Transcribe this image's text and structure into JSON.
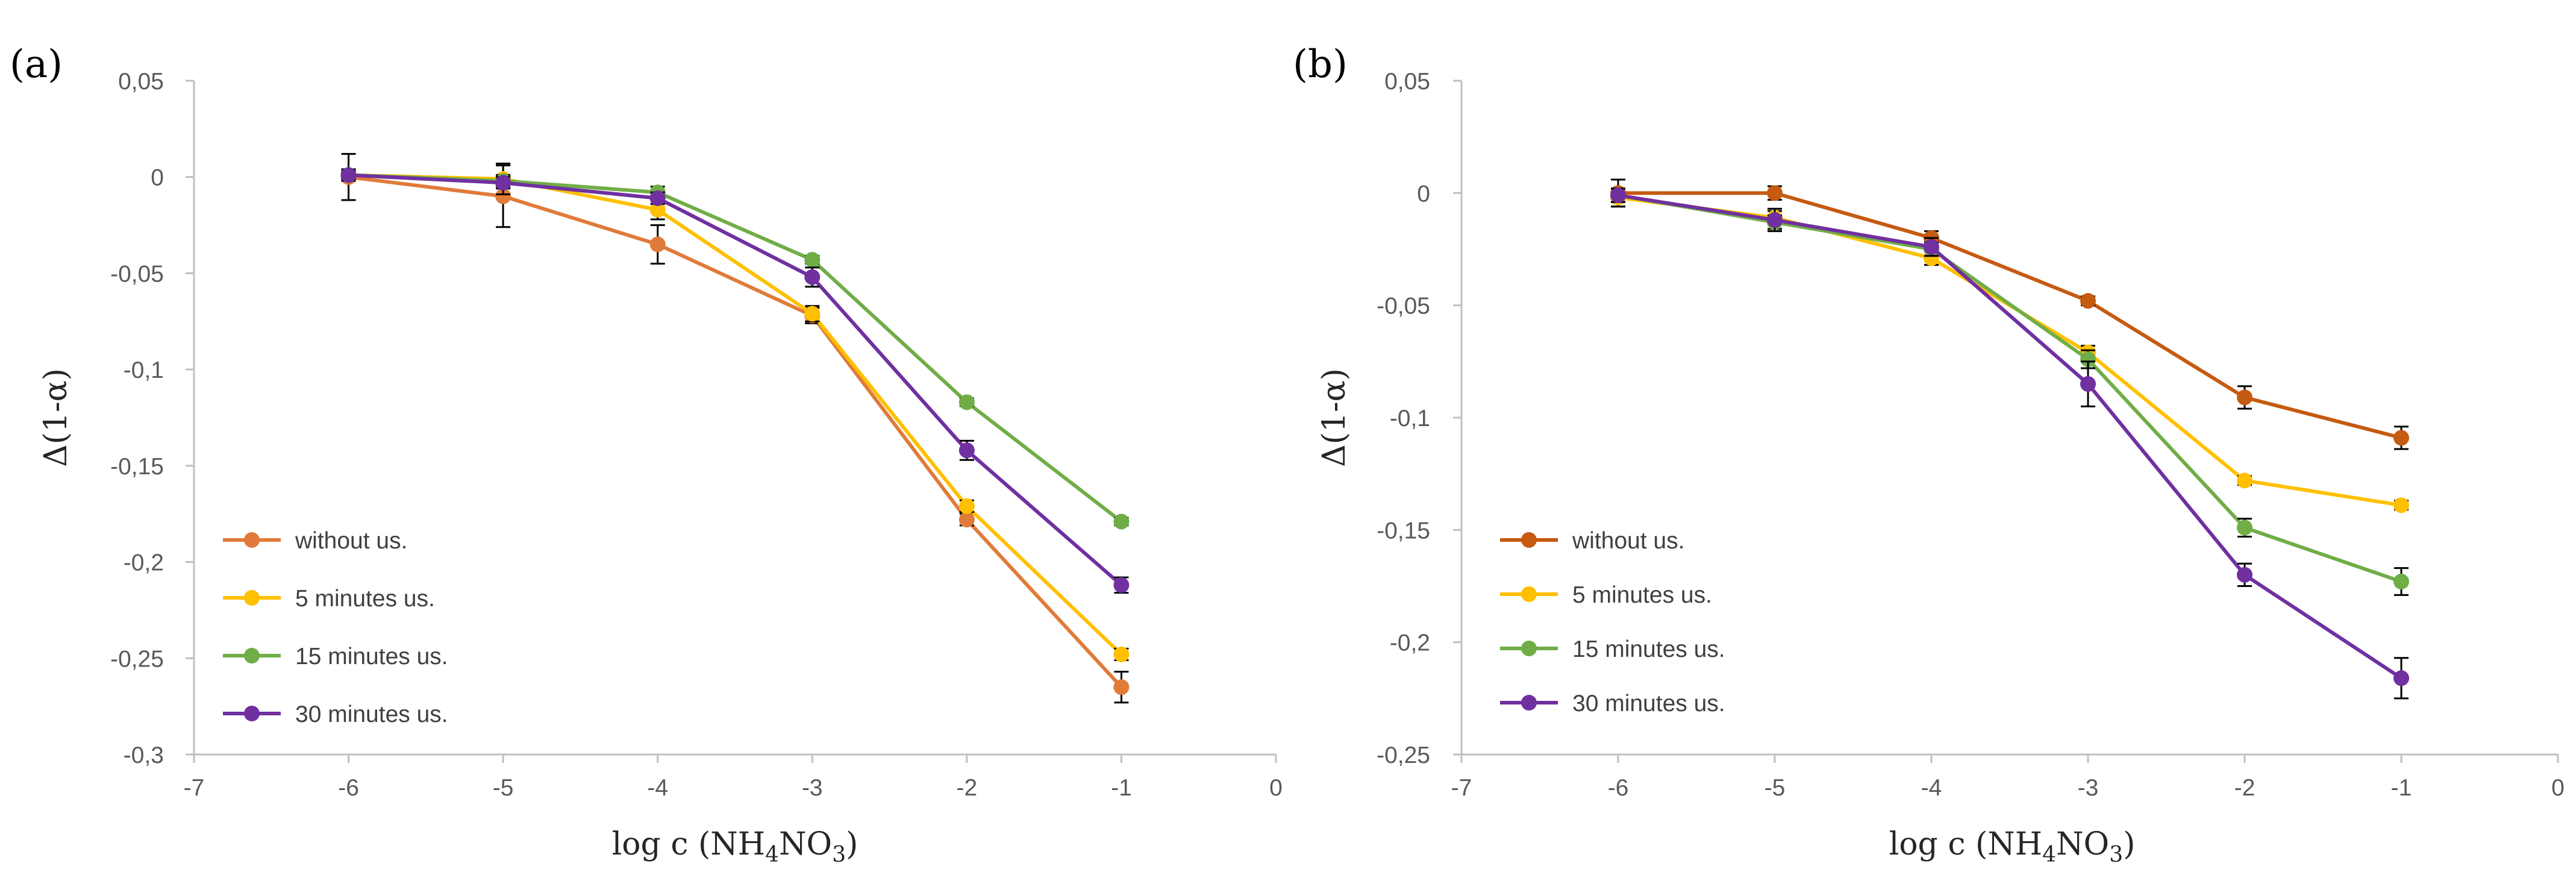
{
  "chart_data": [
    {
      "type": "line",
      "panel_label": "(a)",
      "xlabel": "log c (NH",
      "xlabel_sub": "4",
      "xlabel_mid": "NO",
      "xlabel_sub2": "3",
      "xlabel_end": ")",
      "ylabel": "Δ(1-α)",
      "xlim": [
        -7,
        0
      ],
      "ylim": [
        -0.3,
        0.05
      ],
      "xticks": [
        -7,
        -6,
        -5,
        -4,
        -3,
        -2,
        -1,
        0
      ],
      "xtick_labels": [
        "-7",
        "-6",
        "-5",
        "-4",
        "-3",
        "-2",
        "-1",
        "0"
      ],
      "yticks": [
        0.05,
        0,
        -0.05,
        -0.1,
        -0.15,
        -0.2,
        -0.25,
        -0.3
      ],
      "ytick_labels": [
        "0,05",
        "0",
        "-0,05",
        "-0,1",
        "-0,15",
        "-0,2",
        "-0,25",
        "-0,3"
      ],
      "x": [
        -6,
        -5,
        -4,
        -3,
        -2,
        -1
      ],
      "legend_position": "lower-left",
      "series": [
        {
          "name": "without us.",
          "color": "#e07b39",
          "values": [
            0.0,
            -0.01,
            -0.035,
            -0.072,
            -0.178,
            -0.265
          ],
          "errors": [
            0.012,
            0.016,
            0.01,
            0.004,
            0.003,
            0.008
          ]
        },
        {
          "name": "5 minutes us.",
          "color": "#ffc000",
          "values": [
            0.001,
            -0.001,
            -0.017,
            -0.071,
            -0.171,
            -0.248
          ],
          "errors": [
            0.003,
            0.008,
            0.005,
            0.004,
            0.003,
            0.003
          ]
        },
        {
          "name": "15 minutes us.",
          "color": "#70ad47",
          "values": [
            0.001,
            -0.002,
            -0.008,
            -0.043,
            -0.117,
            -0.179
          ],
          "errors": [
            0.002,
            0.003,
            0.003,
            0.002,
            0.002,
            0.002
          ]
        },
        {
          "name": "30 minutes us.",
          "color": "#7030a0",
          "values": [
            0.001,
            -0.003,
            -0.011,
            -0.052,
            -0.142,
            -0.212
          ],
          "errors": [
            0.002,
            0.003,
            0.003,
            0.005,
            0.005,
            0.004
          ]
        }
      ]
    },
    {
      "type": "line",
      "panel_label": "(b)",
      "xlabel": "log c (NH",
      "xlabel_sub": "4",
      "xlabel_mid": "NO",
      "xlabel_sub2": "3",
      "xlabel_end": ")",
      "ylabel": "Δ(1-α)",
      "xlim": [
        -7,
        0
      ],
      "ylim": [
        -0.25,
        0.05
      ],
      "xticks": [
        -7,
        -6,
        -5,
        -4,
        -3,
        -2,
        -1,
        0
      ],
      "xtick_labels": [
        "-7",
        "-6",
        "-5",
        "-4",
        "-3",
        "-2",
        "-1",
        "0"
      ],
      "yticks": [
        0.05,
        0,
        -0.05,
        -0.1,
        -0.15,
        -0.2,
        -0.25
      ],
      "ytick_labels": [
        "0,05",
        "0",
        "-0,05",
        "-0,1",
        "-0,15",
        "-0,2",
        "-0,25"
      ],
      "x": [
        -6,
        -5,
        -4,
        -3,
        -2,
        -1
      ],
      "legend_position": "lower-left",
      "series": [
        {
          "name": "without us.",
          "color": "#c55a11",
          "values": [
            0.0,
            0.0,
            -0.02,
            -0.048,
            -0.091,
            -0.109
          ],
          "errors": [
            0.006,
            0.003,
            0.003,
            0.002,
            0.005,
            0.005
          ]
        },
        {
          "name": "5 minutes us.",
          "color": "#ffc000",
          "values": [
            -0.002,
            -0.011,
            -0.029,
            -0.071,
            -0.128,
            -0.139
          ],
          "errors": [
            0.004,
            0.003,
            0.003,
            0.003,
            0.002,
            0.002
          ]
        },
        {
          "name": "15 minutes us.",
          "color": "#70ad47",
          "values": [
            -0.001,
            -0.013,
            -0.025,
            -0.074,
            -0.149,
            -0.173
          ],
          "errors": [
            0.003,
            0.003,
            0.003,
            0.004,
            0.004,
            0.006
          ]
        },
        {
          "name": "30 minutes us.",
          "color": "#7030a0",
          "values": [
            -0.001,
            -0.012,
            -0.024,
            -0.085,
            -0.17,
            -0.216
          ],
          "errors": [
            0.003,
            0.005,
            0.004,
            0.01,
            0.005,
            0.009
          ]
        }
      ]
    }
  ]
}
